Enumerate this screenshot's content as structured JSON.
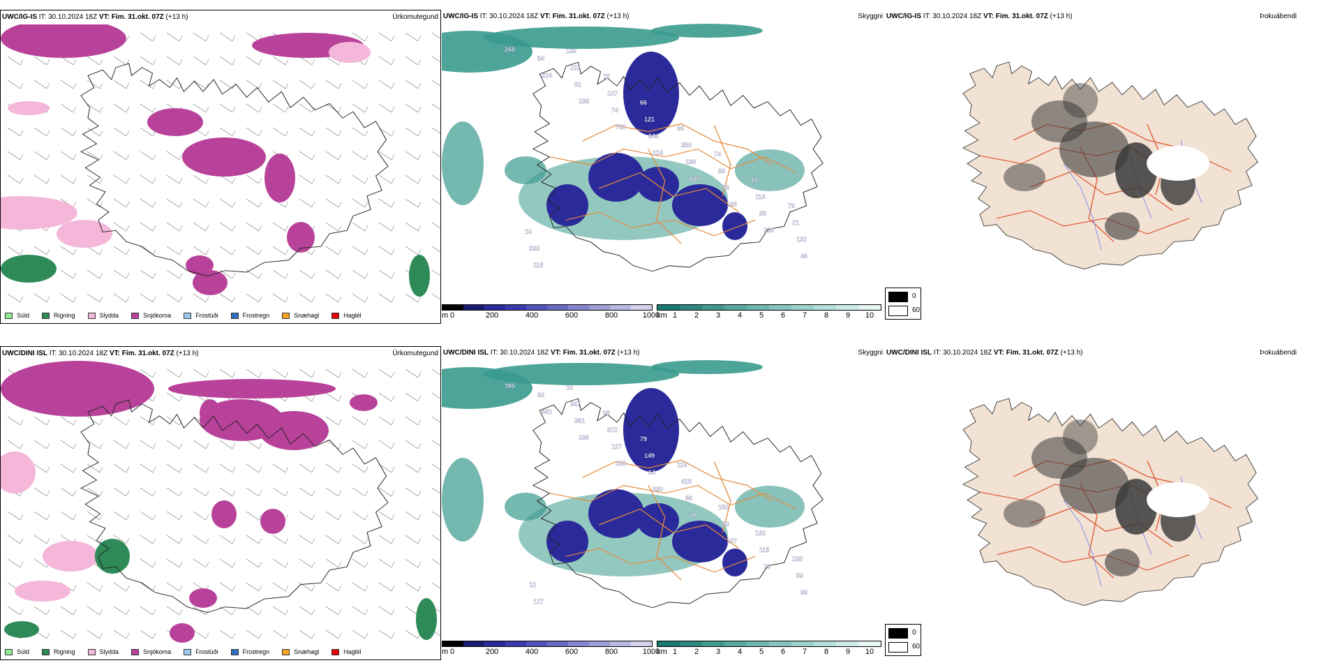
{
  "rows": [
    {
      "model_label": "UWC/IG-IS",
      "vis_model_label": "UWC/IG-IS",
      "header_rest": " IT: 30.10.2024 18Z ",
      "vt_label": "VT: Fim. 31.okt. 07Z",
      "lead": " (+13 h)",
      "precip_title": "Úrkomutegund",
      "vis_title": "Skyggni",
      "cloud_title": "Þokuábendi",
      "cloud_numbers": [
        "260",
        "314",
        "138",
        "762",
        "224",
        "626",
        "195",
        "236",
        "46",
        "54",
        "81",
        "74",
        "344",
        "199",
        "76",
        "65",
        "132",
        "115",
        "222",
        "107",
        "121",
        "350",
        "86",
        "114",
        "21",
        "233",
        "138",
        "75",
        "66",
        "80",
        "74",
        "10",
        "76",
        "10"
      ]
    },
    {
      "model_label": "UWC/DINI ISL",
      "vis_model_label": "UWC/DINI ISL",
      "header_rest": " IT: 30.10.2024 18Z ",
      "vt_label": "VT: Fim. 31.okt. 07Z",
      "lead": " (+13 h)",
      "precip_title": "Úrkomutegund",
      "vis_title": "Skyggni",
      "cloud_title": "Þokuábendi",
      "cloud_numbers": [
        "385",
        "441",
        "236",
        "252",
        "830",
        "18",
        "107",
        "79",
        "99",
        "90",
        "351",
        "127",
        "64",
        "56",
        "63",
        "115",
        "59",
        "127",
        "347",
        "912",
        "149",
        "415",
        "150",
        "132",
        "235",
        "12",
        "15",
        "95",
        "79",
        "116"
      ]
    }
  ],
  "precip_legend": [
    {
      "label": "Súld",
      "color": "#90ee90"
    },
    {
      "label": "Rigning",
      "color": "#2e8b57"
    },
    {
      "label": "Slydda",
      "color": "#f4b6d9"
    },
    {
      "label": "Snjókoma",
      "color": "#b8429a"
    },
    {
      "label": "Frostúði",
      "color": "#9cc7f0"
    },
    {
      "label": "Frostregn",
      "color": "#2f6fbf"
    },
    {
      "label": "Snæhagl",
      "color": "#f5a623"
    },
    {
      "label": "Haglél",
      "color": "#e60000"
    }
  ],
  "cloud_base_scale": {
    "unit": "m",
    "ticks": [
      "0",
      "200",
      "400",
      "600",
      "800",
      "1000"
    ],
    "colors": [
      "#000000",
      "#1a1a6e",
      "#2a2a9a",
      "#3b3bb0",
      "#5252bd",
      "#6b6bc6",
      "#8585cf",
      "#9f9fd8",
      "#b8b8e2",
      "#d2d2ec"
    ]
  },
  "visibility_scale": {
    "unit": "km",
    "ticks": [
      "1",
      "2",
      "3",
      "4",
      "5",
      "6",
      "7",
      "8",
      "9",
      "10"
    ],
    "colors": [
      "#1a7a70",
      "#2e8a80",
      "#43998f",
      "#58a89f",
      "#6eb7ae",
      "#85c5be",
      "#9dd3cd",
      "#b5e0db",
      "#cdece9",
      "#e6f6f4"
    ]
  },
  "fog_legend": {
    "values": [
      "0",
      "60"
    ],
    "colors": [
      "#000000",
      "#ffffff"
    ]
  },
  "colors": {
    "coast": "#222222",
    "roads": "#e06a1a",
    "rivers": "#7f8ff0",
    "land_fog": "#f2e2d3",
    "teal": "#3a9a8e",
    "magenta": "#b8429a",
    "pink": "#f4b6d9",
    "green": "#2e8b57",
    "navy": "#2a2a9a"
  }
}
